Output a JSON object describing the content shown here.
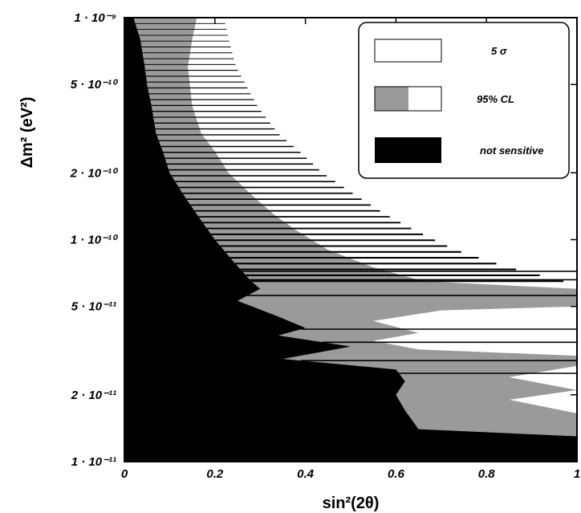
{
  "chart_data": {
    "type": "contour",
    "x_axis": {
      "label": "sin²(2θ)",
      "range": [
        0,
        1
      ],
      "scale": "linear",
      "ticks": [
        {
          "value": 0,
          "label": "0"
        },
        {
          "value": 0.2,
          "label": "0.2"
        },
        {
          "value": 0.4,
          "label": "0.4"
        },
        {
          "value": 0.6,
          "label": "0.6"
        },
        {
          "value": 0.8,
          "label": "0.8"
        },
        {
          "value": 1,
          "label": "1"
        }
      ]
    },
    "y_axis": {
      "label": "Δm² (eV²)",
      "range": [
        1e-11,
        1e-09
      ],
      "scale": "log",
      "ticks": [
        {
          "value": 1e-09,
          "label": "1 · 10⁻⁹"
        },
        {
          "value": 5e-10,
          "label": "5 · 10⁻¹⁰"
        },
        {
          "value": 2e-10,
          "label": "2 · 10⁻¹⁰"
        },
        {
          "value": 1e-10,
          "label": "1 · 10⁻¹⁰"
        },
        {
          "value": 5e-11,
          "label": "5 · 10⁻¹¹"
        },
        {
          "value": 2e-11,
          "label": "2 · 10⁻¹¹"
        },
        {
          "value": 1e-11,
          "label": "1 · 10⁻¹¹"
        }
      ]
    },
    "legend": {
      "placement": "top-right",
      "entries": [
        {
          "label": "5 σ",
          "style": "white"
        },
        {
          "label": "95% CL",
          "style": "gray-white"
        },
        {
          "label": "not sensitive",
          "style": "black"
        }
      ]
    },
    "colors": {
      "not_sensitive": "#000000",
      "cl95": "#9a9a9a",
      "sigma5": "#ffffff"
    },
    "boundary_not_sensitive": [
      [
        0.02,
        1e-09
      ],
      [
        0.035,
        8e-10
      ],
      [
        0.045,
        6e-10
      ],
      [
        0.05,
        5e-10
      ],
      [
        0.06,
        4e-10
      ],
      [
        0.07,
        3e-10
      ],
      [
        0.085,
        2.5e-10
      ],
      [
        0.1,
        2e-10
      ],
      [
        0.13,
        1.6e-10
      ],
      [
        0.16,
        1.3e-10
      ],
      [
        0.2,
        1e-10
      ],
      [
        0.24,
        8e-11
      ],
      [
        0.28,
        6.5e-11
      ],
      [
        0.3,
        6e-11
      ],
      [
        0.25,
        5.3e-11
      ],
      [
        0.34,
        4.5e-11
      ],
      [
        0.4,
        4e-11
      ],
      [
        0.34,
        3.7e-11
      ],
      [
        0.5,
        3.3e-11
      ],
      [
        0.35,
        2.9e-11
      ],
      [
        0.6,
        2.6e-11
      ],
      [
        0.62,
        2.3e-11
      ],
      [
        0.6,
        2e-11
      ],
      [
        0.62,
        1.7e-11
      ],
      [
        0.65,
        1.4e-11
      ],
      [
        1,
        1.3e-11
      ]
    ],
    "boundary_cl95": [
      [
        0.16,
        1e-09
      ],
      [
        0.15,
        8e-10
      ],
      [
        0.14,
        6e-10
      ],
      [
        0.15,
        4e-10
      ],
      [
        0.17,
        3e-10
      ],
      [
        0.2,
        2.5e-10
      ],
      [
        0.23,
        2e-10
      ],
      [
        0.28,
        1.6e-10
      ],
      [
        0.33,
        1.3e-10
      ],
      [
        0.38,
        1.1e-10
      ],
      [
        0.45,
        9e-11
      ],
      [
        0.55,
        7.5e-11
      ],
      [
        0.66,
        6.5e-11
      ],
      [
        1,
        6e-11
      ],
      [
        1,
        5e-11
      ],
      [
        0.7,
        4.8e-11
      ],
      [
        0.55,
        4.3e-11
      ],
      [
        0.65,
        3.8e-11
      ],
      [
        0.55,
        3.5e-11
      ],
      [
        0.65,
        3.2e-11
      ],
      [
        1,
        3e-11
      ],
      [
        1,
        2.7e-11
      ],
      [
        0.85,
        2.4e-11
      ],
      [
        1,
        2.1e-11
      ],
      [
        0.85,
        1.9e-11
      ],
      [
        1,
        1.65e-11
      ]
    ]
  }
}
